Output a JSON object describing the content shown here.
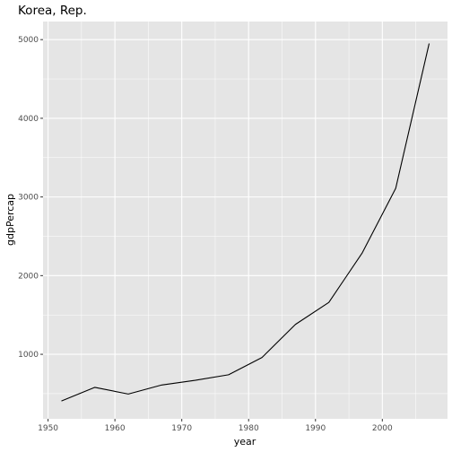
{
  "chart_data": {
    "type": "line",
    "title": "Korea, Rep.",
    "xlabel": "year",
    "ylabel": "gdpPercap",
    "xlim": [
      1949.25,
      2009.75
    ],
    "ylim": [
      180,
      5230
    ],
    "x_ticks": [
      1950,
      1960,
      1970,
      1980,
      1990,
      2000
    ],
    "y_ticks": [
      1000,
      2000,
      3000,
      4000,
      5000
    ],
    "grid": true,
    "legend": "none",
    "colors": {
      "panel": "#e5e5e5",
      "grid": "#ffffff",
      "line": "#000000"
    },
    "series": [
      {
        "x": [
          1952,
          1957,
          1962,
          1967,
          1972,
          1977,
          1982,
          1987,
          1992,
          1997,
          2002,
          2007
        ],
        "y": [
          407,
          580,
          495,
          610,
          670,
          740,
          960,
          1380,
          1660,
          2290,
          3110,
          4950
        ]
      }
    ]
  }
}
